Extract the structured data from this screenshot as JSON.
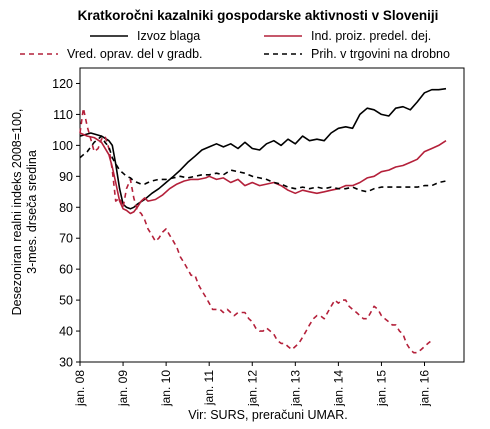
{
  "chart_data": {
    "type": "line",
    "title": "Kratkoročni kazalniki gospodarske aktivnosti v Sloveniji",
    "ylabel_line1": "Desezoniran realni indeks 2008=100,",
    "ylabel_line2": "3-mes. drseča sredina",
    "xlabel": "",
    "source": "Vir: SURS, preračuni UMAR.",
    "ylim": [
      30,
      125
    ],
    "yticks": [
      30,
      40,
      50,
      60,
      70,
      80,
      90,
      100,
      110,
      120
    ],
    "xrange": [
      2008.0,
      2016.917
    ],
    "xticks": [
      {
        "label": "jan. 08",
        "t": 2008.0
      },
      {
        "label": "jan. 09",
        "t": 2009.0
      },
      {
        "label": "jan. 10",
        "t": 2010.0
      },
      {
        "label": "jan. 11",
        "t": 2011.0
      },
      {
        "label": "jan. 12",
        "t": 2012.0
      },
      {
        "label": "jan. 13",
        "t": 2013.0
      },
      {
        "label": "jan. 14",
        "t": 2014.0
      },
      {
        "label": "jan. 15",
        "t": 2015.0
      },
      {
        "label": "jan. 16",
        "t": 2016.0
      }
    ],
    "grid": false,
    "legend_position": "top",
    "series": [
      {
        "name": "Izvoz blaga",
        "color": "#000000",
        "dash": "solid",
        "points": [
          [
            2008.0,
            103
          ],
          [
            2008.25,
            104
          ],
          [
            2008.5,
            103
          ],
          [
            2008.67,
            101.5
          ],
          [
            2008.75,
            100
          ],
          [
            2008.83,
            94
          ],
          [
            2008.92,
            86
          ],
          [
            2009.0,
            81
          ],
          [
            2009.08,
            80
          ],
          [
            2009.17,
            79.5
          ],
          [
            2009.25,
            80
          ],
          [
            2009.33,
            81
          ],
          [
            2009.5,
            82.5
          ],
          [
            2009.67,
            84.5
          ],
          [
            2009.83,
            86
          ],
          [
            2010.0,
            88
          ],
          [
            2010.17,
            90
          ],
          [
            2010.33,
            92
          ],
          [
            2010.5,
            94.5
          ],
          [
            2010.67,
            96.5
          ],
          [
            2010.83,
            98.5
          ],
          [
            2011.0,
            99.5
          ],
          [
            2011.17,
            100.5
          ],
          [
            2011.33,
            99.5
          ],
          [
            2011.5,
            100.5
          ],
          [
            2011.67,
            99
          ],
          [
            2011.83,
            101
          ],
          [
            2012.0,
            99
          ],
          [
            2012.17,
            98.5
          ],
          [
            2012.33,
            100.5
          ],
          [
            2012.5,
            101.5
          ],
          [
            2012.67,
            100
          ],
          [
            2012.83,
            102
          ],
          [
            2013.0,
            100.5
          ],
          [
            2013.17,
            103
          ],
          [
            2013.33,
            101.5
          ],
          [
            2013.5,
            102
          ],
          [
            2013.67,
            101.5
          ],
          [
            2013.83,
            104
          ],
          [
            2014.0,
            105.5
          ],
          [
            2014.17,
            106
          ],
          [
            2014.33,
            105.5
          ],
          [
            2014.5,
            110
          ],
          [
            2014.67,
            112
          ],
          [
            2014.83,
            111.5
          ],
          [
            2015.0,
            110
          ],
          [
            2015.17,
            109.5
          ],
          [
            2015.33,
            112
          ],
          [
            2015.5,
            112.5
          ],
          [
            2015.67,
            111.5
          ],
          [
            2015.83,
            114
          ],
          [
            2016.0,
            117
          ],
          [
            2016.17,
            118
          ],
          [
            2016.33,
            118
          ],
          [
            2016.5,
            118.3
          ]
        ]
      },
      {
        "name": "Ind. proiz. predel. dej.",
        "color": "#b4203a",
        "dash": "solid",
        "points": [
          [
            2008.0,
            104
          ],
          [
            2008.17,
            103
          ],
          [
            2008.33,
            102.5
          ],
          [
            2008.5,
            101
          ],
          [
            2008.67,
            97
          ],
          [
            2008.75,
            93
          ],
          [
            2008.83,
            88
          ],
          [
            2008.92,
            82
          ],
          [
            2009.0,
            79.5
          ],
          [
            2009.08,
            79
          ],
          [
            2009.17,
            78
          ],
          [
            2009.25,
            78.5
          ],
          [
            2009.33,
            80
          ],
          [
            2009.42,
            82
          ],
          [
            2009.5,
            83
          ],
          [
            2009.58,
            82
          ],
          [
            2009.75,
            82.5
          ],
          [
            2009.92,
            84
          ],
          [
            2010.08,
            86
          ],
          [
            2010.25,
            87.5
          ],
          [
            2010.42,
            88.5
          ],
          [
            2010.58,
            89
          ],
          [
            2010.75,
            89
          ],
          [
            2010.92,
            89.5
          ],
          [
            2011.0,
            90
          ],
          [
            2011.17,
            89
          ],
          [
            2011.33,
            89.5
          ],
          [
            2011.5,
            88
          ],
          [
            2011.67,
            89
          ],
          [
            2011.83,
            87
          ],
          [
            2012.0,
            88
          ],
          [
            2012.17,
            87
          ],
          [
            2012.33,
            87.5
          ],
          [
            2012.5,
            88
          ],
          [
            2012.67,
            87
          ],
          [
            2012.83,
            85.5
          ],
          [
            2013.0,
            84.5
          ],
          [
            2013.17,
            85.5
          ],
          [
            2013.33,
            85
          ],
          [
            2013.5,
            84.5
          ],
          [
            2013.67,
            85
          ],
          [
            2013.83,
            85.5
          ],
          [
            2014.0,
            86
          ],
          [
            2014.17,
            87
          ],
          [
            2014.33,
            87
          ],
          [
            2014.5,
            88
          ],
          [
            2014.67,
            89.5
          ],
          [
            2014.83,
            90
          ],
          [
            2015.0,
            91.5
          ],
          [
            2015.17,
            92
          ],
          [
            2015.33,
            93
          ],
          [
            2015.5,
            93.5
          ],
          [
            2015.67,
            94.5
          ],
          [
            2015.83,
            95.5
          ],
          [
            2016.0,
            98
          ],
          [
            2016.17,
            99
          ],
          [
            2016.33,
            100
          ],
          [
            2016.5,
            101.5
          ]
        ]
      },
      {
        "name": "Vred. oprav. del v gradb.",
        "color": "#b4203a",
        "dash": "dashed",
        "points": [
          [
            2008.0,
            104
          ],
          [
            2008.08,
            112
          ],
          [
            2008.17,
            106
          ],
          [
            2008.25,
            102
          ],
          [
            2008.33,
            98
          ],
          [
            2008.42,
            99
          ],
          [
            2008.5,
            102
          ],
          [
            2008.58,
            103
          ],
          [
            2008.67,
            99
          ],
          [
            2008.75,
            92
          ],
          [
            2008.83,
            82
          ],
          [
            2008.92,
            83
          ],
          [
            2009.0,
            80
          ],
          [
            2009.08,
            86
          ],
          [
            2009.17,
            89
          ],
          [
            2009.25,
            83
          ],
          [
            2009.33,
            79
          ],
          [
            2009.42,
            78
          ],
          [
            2009.5,
            76
          ],
          [
            2009.58,
            73
          ],
          [
            2009.67,
            71
          ],
          [
            2009.75,
            69
          ],
          [
            2009.83,
            70
          ],
          [
            2009.92,
            72
          ],
          [
            2010.0,
            73
          ],
          [
            2010.08,
            71
          ],
          [
            2010.17,
            69
          ],
          [
            2010.25,
            67
          ],
          [
            2010.33,
            64
          ],
          [
            2010.42,
            62
          ],
          [
            2010.5,
            60
          ],
          [
            2010.58,
            58
          ],
          [
            2010.67,
            58
          ],
          [
            2010.75,
            55
          ],
          [
            2010.83,
            53
          ],
          [
            2010.92,
            51
          ],
          [
            2011.0,
            49
          ],
          [
            2011.08,
            47
          ],
          [
            2011.17,
            47
          ],
          [
            2011.25,
            47
          ],
          [
            2011.33,
            46
          ],
          [
            2011.42,
            47
          ],
          [
            2011.5,
            46
          ],
          [
            2011.58,
            45
          ],
          [
            2011.67,
            46
          ],
          [
            2011.75,
            46
          ],
          [
            2011.83,
            46
          ],
          [
            2011.92,
            44
          ],
          [
            2012.0,
            43
          ],
          [
            2012.08,
            41
          ],
          [
            2012.17,
            40
          ],
          [
            2012.25,
            40
          ],
          [
            2012.33,
            41
          ],
          [
            2012.42,
            40
          ],
          [
            2012.5,
            39
          ],
          [
            2012.58,
            37
          ],
          [
            2012.67,
            36
          ],
          [
            2012.75,
            36
          ],
          [
            2012.83,
            35
          ],
          [
            2012.92,
            34
          ],
          [
            2013.0,
            35
          ],
          [
            2013.08,
            36
          ],
          [
            2013.17,
            38
          ],
          [
            2013.25,
            40
          ],
          [
            2013.33,
            42
          ],
          [
            2013.42,
            44
          ],
          [
            2013.5,
            45
          ],
          [
            2013.58,
            45
          ],
          [
            2013.67,
            44
          ],
          [
            2013.75,
            46
          ],
          [
            2013.83,
            48
          ],
          [
            2013.92,
            50
          ],
          [
            2014.0,
            49
          ],
          [
            2014.08,
            50
          ],
          [
            2014.17,
            50
          ],
          [
            2014.25,
            48
          ],
          [
            2014.33,
            47
          ],
          [
            2014.42,
            46
          ],
          [
            2014.5,
            45
          ],
          [
            2014.58,
            44
          ],
          [
            2014.67,
            44
          ],
          [
            2014.75,
            46
          ],
          [
            2014.83,
            48
          ],
          [
            2014.92,
            47
          ],
          [
            2015.0,
            45
          ],
          [
            2015.08,
            44
          ],
          [
            2015.17,
            43
          ],
          [
            2015.25,
            42
          ],
          [
            2015.33,
            42
          ],
          [
            2015.42,
            40
          ],
          [
            2015.5,
            39
          ],
          [
            2015.58,
            36
          ],
          [
            2015.67,
            34
          ],
          [
            2015.75,
            33
          ],
          [
            2015.83,
            33
          ],
          [
            2015.92,
            34
          ],
          [
            2016.0,
            35
          ],
          [
            2016.08,
            36
          ],
          [
            2016.17,
            37
          ]
        ]
      },
      {
        "name": "Prih. v trgovini na drobno",
        "color": "#000000",
        "dash": "dashed",
        "points": [
          [
            2008.0,
            96
          ],
          [
            2008.08,
            97
          ],
          [
            2008.17,
            98
          ],
          [
            2008.25,
            99.5
          ],
          [
            2008.33,
            101
          ],
          [
            2008.42,
            102
          ],
          [
            2008.5,
            103
          ],
          [
            2008.58,
            101
          ],
          [
            2008.67,
            99.5
          ],
          [
            2008.75,
            96
          ],
          [
            2008.83,
            94
          ],
          [
            2008.92,
            92
          ],
          [
            2009.0,
            91
          ],
          [
            2009.08,
            90
          ],
          [
            2009.17,
            89.5
          ],
          [
            2009.25,
            88.5
          ],
          [
            2009.33,
            88
          ],
          [
            2009.42,
            87.5
          ],
          [
            2009.5,
            87.5
          ],
          [
            2009.58,
            88
          ],
          [
            2009.67,
            88.5
          ],
          [
            2009.83,
            89
          ],
          [
            2010.0,
            89
          ],
          [
            2010.17,
            89.5
          ],
          [
            2010.33,
            90
          ],
          [
            2010.5,
            89.5
          ],
          [
            2010.67,
            90
          ],
          [
            2010.83,
            90.5
          ],
          [
            2011.0,
            90.5
          ],
          [
            2011.17,
            91
          ],
          [
            2011.33,
            90.5
          ],
          [
            2011.5,
            92
          ],
          [
            2011.67,
            91.5
          ],
          [
            2011.83,
            91
          ],
          [
            2012.0,
            90
          ],
          [
            2012.17,
            89.5
          ],
          [
            2012.33,
            89
          ],
          [
            2012.5,
            88
          ],
          [
            2012.67,
            87.5
          ],
          [
            2012.83,
            86.5
          ],
          [
            2013.0,
            86
          ],
          [
            2013.17,
            86.5
          ],
          [
            2013.33,
            86
          ],
          [
            2013.5,
            86.5
          ],
          [
            2013.67,
            86
          ],
          [
            2013.83,
            86.5
          ],
          [
            2014.0,
            86
          ],
          [
            2014.17,
            86
          ],
          [
            2014.33,
            86.5
          ],
          [
            2014.5,
            85.5
          ],
          [
            2014.67,
            85
          ],
          [
            2014.83,
            86
          ],
          [
            2015.0,
            86.5
          ],
          [
            2015.17,
            86.5
          ],
          [
            2015.33,
            86.5
          ],
          [
            2015.5,
            86.5
          ],
          [
            2015.67,
            86.5
          ],
          [
            2015.83,
            86.5
          ],
          [
            2016.0,
            87
          ],
          [
            2016.17,
            87
          ],
          [
            2016.33,
            88
          ],
          [
            2016.5,
            88.5
          ]
        ]
      }
    ]
  }
}
